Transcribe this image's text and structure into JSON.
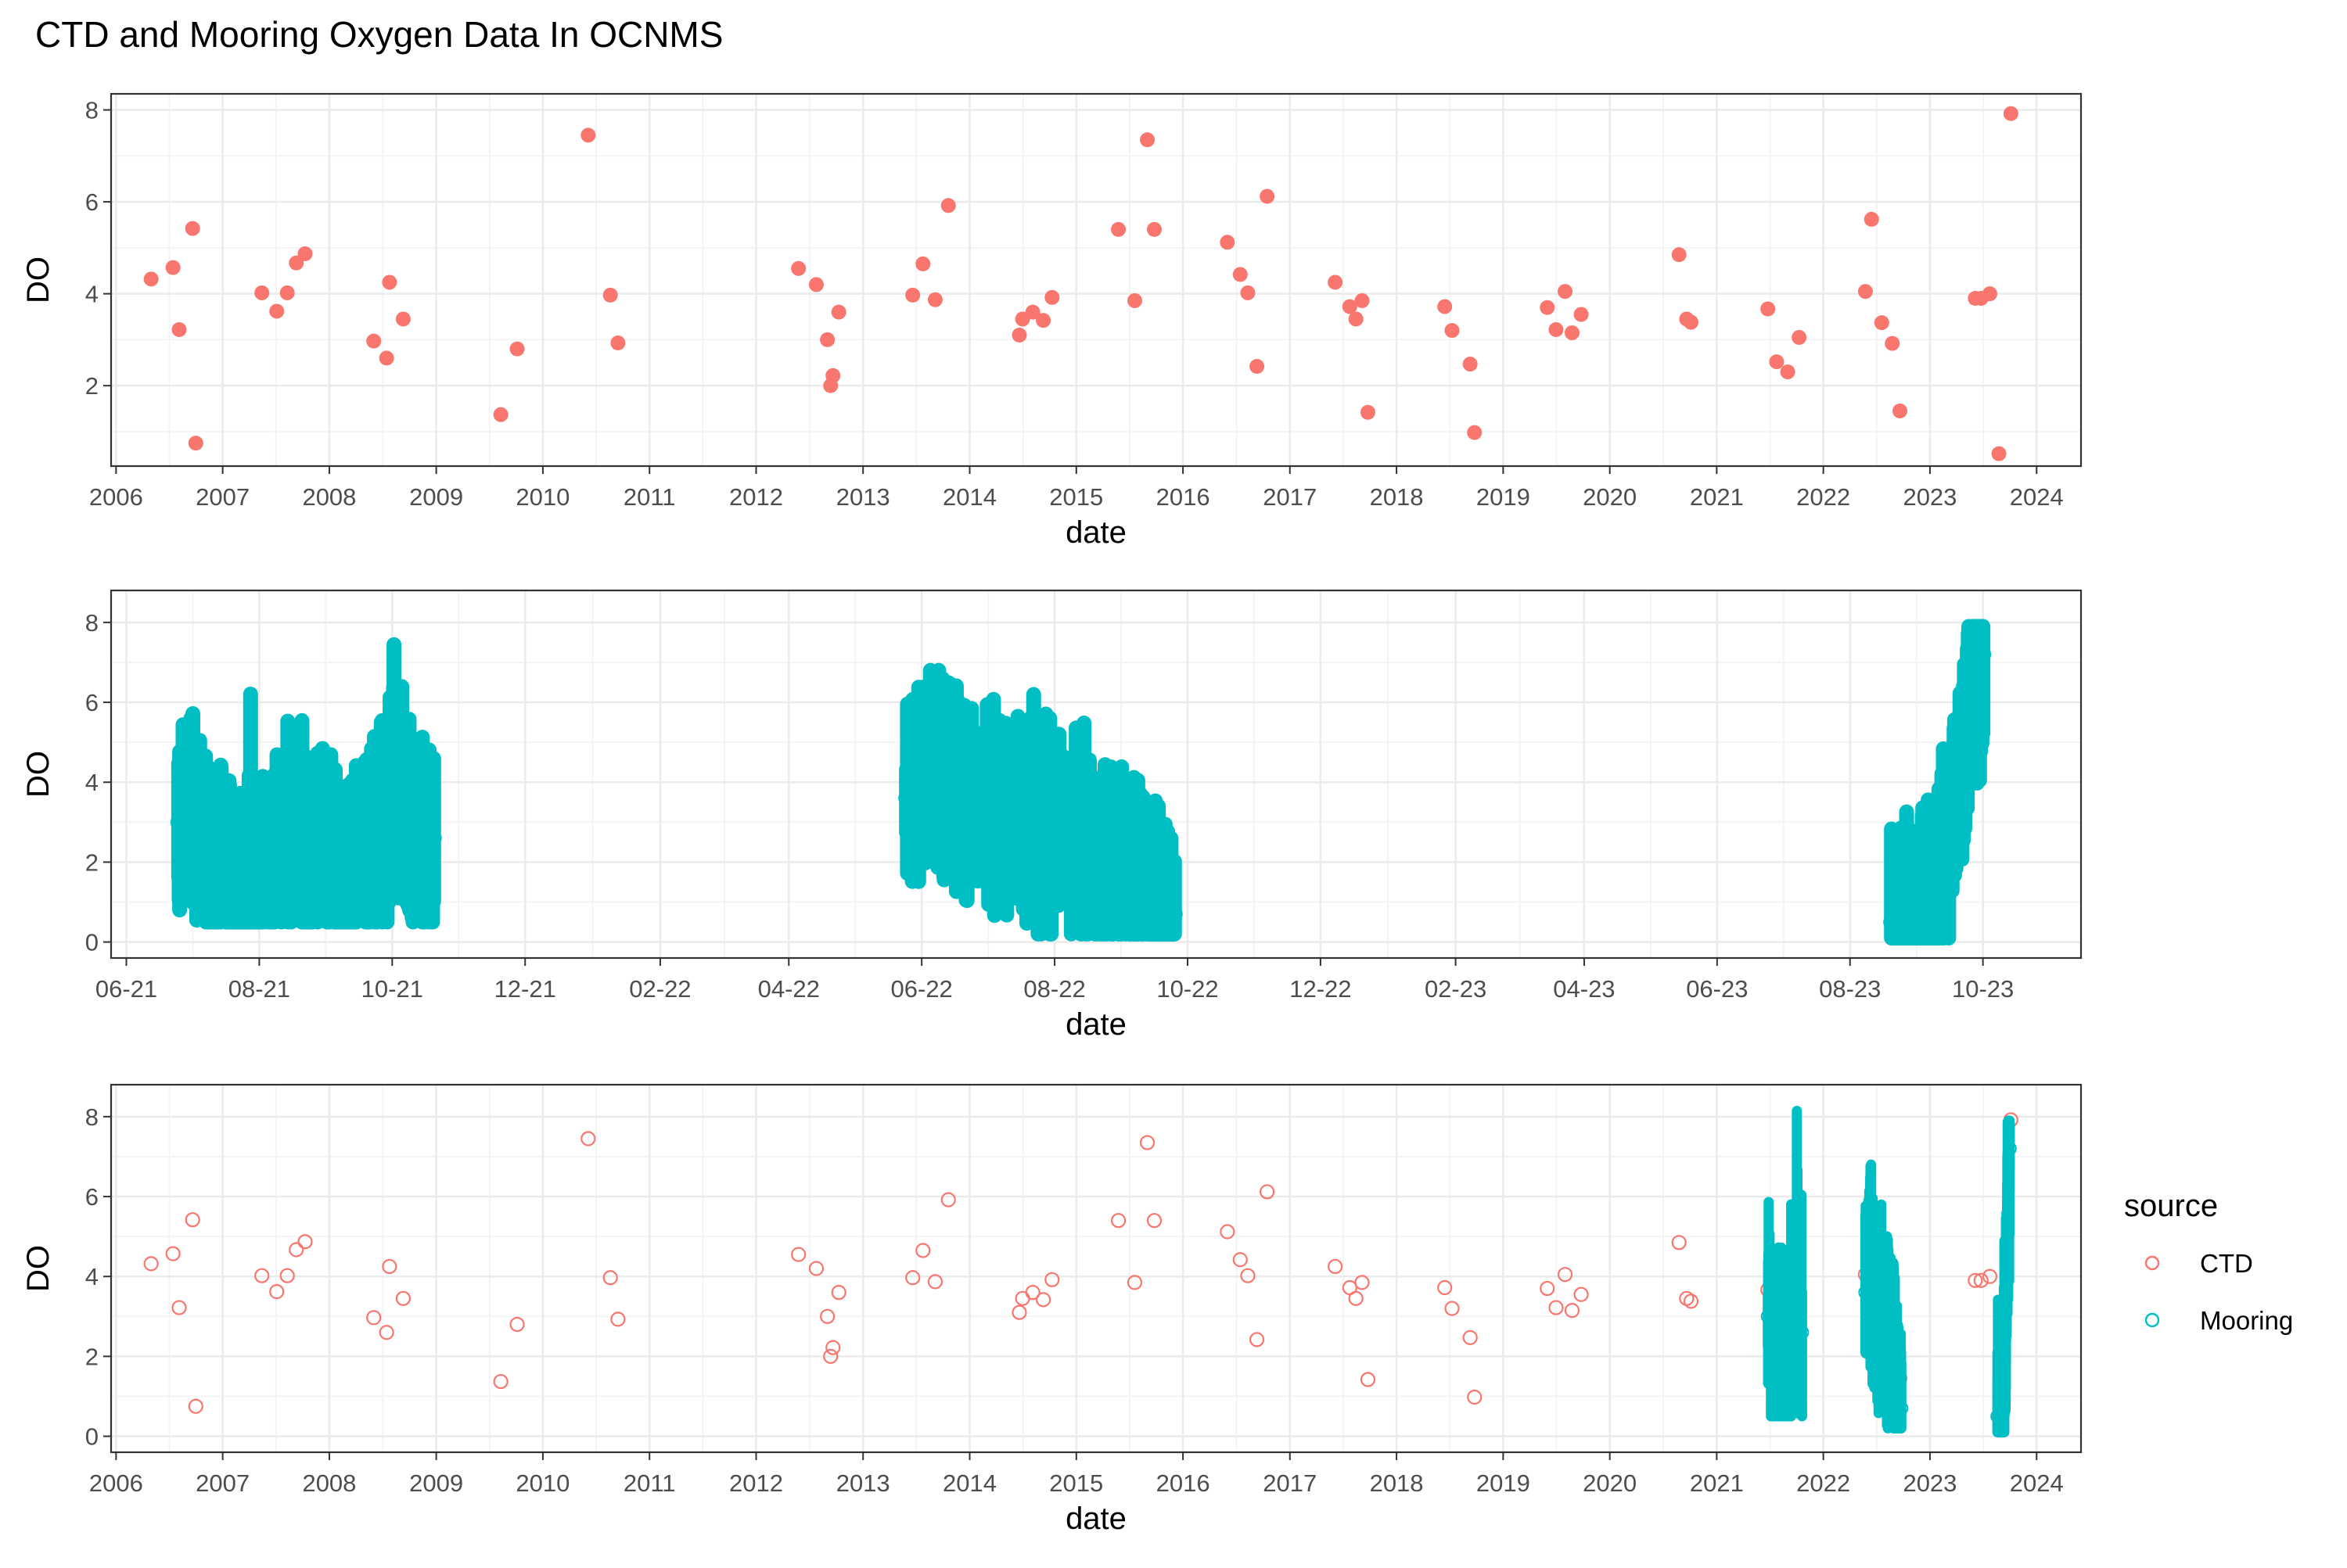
{
  "page": {
    "title": "CTD and Mooring Oxygen Data In OCNMS"
  },
  "colors": {
    "ctd": "#F8766D",
    "mooring": "#00BFC4",
    "grid_major": "#EBEBEB",
    "grid_minor": "#F4F4F4",
    "panel_border": "#333333",
    "text": "#000000",
    "tick_text": "#4D4D4D"
  },
  "legend": {
    "title": "source",
    "items": [
      {
        "label": "CTD",
        "color": "#F8766D"
      },
      {
        "label": "Mooring",
        "color": "#00BFC4"
      }
    ]
  },
  "chart_data": [
    {
      "type": "scatter",
      "xlabel": "date",
      "ylabel": "DO",
      "x_type": "date",
      "xlim": [
        "2005-12-15",
        "2024-06-01"
      ],
      "ylim": [
        0.25,
        8.35
      ],
      "x_ticks": [
        "2006-01-01",
        "2007-01-01",
        "2008-01-01",
        "2009-01-01",
        "2010-01-01",
        "2011-01-01",
        "2012-01-01",
        "2013-01-01",
        "2014-01-01",
        "2015-01-01",
        "2016-01-01",
        "2017-01-01",
        "2018-01-01",
        "2019-01-01",
        "2020-01-01",
        "2021-01-01",
        "2022-01-01",
        "2023-01-01",
        "2024-01-01"
      ],
      "x_tick_labels": [
        "2006",
        "2007",
        "2008",
        "2009",
        "2010",
        "2011",
        "2012",
        "2013",
        "2014",
        "2015",
        "2016",
        "2017",
        "2018",
        "2019",
        "2020",
        "2021",
        "2022",
        "2023",
        "2024"
      ],
      "y_ticks": [
        2,
        4,
        6,
        8
      ],
      "y_tick_labels": [
        "2",
        "4",
        "6",
        "8"
      ],
      "grid": true,
      "legend": false,
      "series": [
        {
          "source": "CTD",
          "marker": "filled",
          "points": [
            [
              "2006-05-01",
              4.32
            ],
            [
              "2006-07-15",
              4.57
            ],
            [
              "2006-08-05",
              3.22
            ],
            [
              "2006-09-20",
              5.42
            ],
            [
              "2006-10-01",
              0.75
            ],
            [
              "2007-05-15",
              4.02
            ],
            [
              "2007-07-05",
              3.62
            ],
            [
              "2007-08-10",
              4.02
            ],
            [
              "2007-09-10",
              4.67
            ],
            [
              "2007-10-10",
              4.87
            ],
            [
              "2008-06-01",
              2.97
            ],
            [
              "2008-07-15",
              2.6
            ],
            [
              "2008-07-25",
              4.25
            ],
            [
              "2008-09-10",
              3.45
            ],
            [
              "2009-08-10",
              1.37
            ],
            [
              "2009-10-05",
              2.8
            ],
            [
              "2010-06-05",
              7.45
            ],
            [
              "2010-08-20",
              3.97
            ],
            [
              "2010-09-15",
              2.93
            ],
            [
              "2012-05-25",
              4.55
            ],
            [
              "2012-07-25",
              4.2
            ],
            [
              "2012-09-01",
              3.0
            ],
            [
              "2012-09-12",
              2.0
            ],
            [
              "2012-09-20",
              2.22
            ],
            [
              "2012-10-10",
              3.6
            ],
            [
              "2013-06-20",
              3.97
            ],
            [
              "2013-07-25",
              4.65
            ],
            [
              "2013-09-05",
              3.87
            ],
            [
              "2013-10-20",
              5.92
            ],
            [
              "2014-06-20",
              3.1
            ],
            [
              "2014-07-01",
              3.45
            ],
            [
              "2014-08-05",
              3.6
            ],
            [
              "2014-09-10",
              3.42
            ],
            [
              "2014-10-10",
              3.92
            ],
            [
              "2015-05-25",
              5.4
            ],
            [
              "2015-07-20",
              3.85
            ],
            [
              "2015-09-01",
              7.35
            ],
            [
              "2015-09-25",
              5.4
            ],
            [
              "2016-06-01",
              5.12
            ],
            [
              "2016-07-15",
              4.42
            ],
            [
              "2016-08-10",
              4.02
            ],
            [
              "2016-09-10",
              2.42
            ],
            [
              "2016-10-15",
              6.12
            ],
            [
              "2017-06-05",
              4.25
            ],
            [
              "2017-07-25",
              3.72
            ],
            [
              "2017-08-15",
              3.45
            ],
            [
              "2017-09-05",
              3.85
            ],
            [
              "2017-09-25",
              1.42
            ],
            [
              "2018-06-15",
              3.72
            ],
            [
              "2018-07-10",
              3.2
            ],
            [
              "2018-09-10",
              2.47
            ],
            [
              "2018-09-25",
              0.98
            ],
            [
              "2019-06-01",
              3.7
            ],
            [
              "2019-07-01",
              3.22
            ],
            [
              "2019-08-01",
              4.05
            ],
            [
              "2019-08-25",
              3.15
            ],
            [
              "2019-09-25",
              3.55
            ],
            [
              "2020-08-25",
              4.85
            ],
            [
              "2020-09-20",
              3.45
            ],
            [
              "2020-10-05",
              3.38
            ],
            [
              "2021-06-25",
              3.67
            ],
            [
              "2021-07-25",
              2.52
            ],
            [
              "2021-09-01",
              2.3
            ],
            [
              "2021-10-10",
              3.05
            ],
            [
              "2022-05-25",
              4.05
            ],
            [
              "2022-06-15",
              5.62
            ],
            [
              "2022-07-20",
              3.37
            ],
            [
              "2022-08-25",
              2.92
            ],
            [
              "2022-09-20",
              1.45
            ],
            [
              "2023-06-05",
              3.9
            ],
            [
              "2023-06-25",
              3.9
            ],
            [
              "2023-07-25",
              4.0
            ],
            [
              "2023-08-25",
              0.52
            ],
            [
              "2023-10-05",
              7.92
            ]
          ]
        }
      ]
    },
    {
      "type": "scatter",
      "xlabel": "date",
      "ylabel": "DO",
      "x_type": "date",
      "xlim": [
        "2021-05-25",
        "2023-11-15"
      ],
      "ylim": [
        -0.4,
        8.8
      ],
      "x_ticks": [
        "2021-06-01",
        "2021-08-01",
        "2021-10-01",
        "2021-12-01",
        "2022-02-01",
        "2022-04-01",
        "2022-06-01",
        "2022-08-01",
        "2022-10-01",
        "2022-12-01",
        "2023-02-01",
        "2023-04-01",
        "2023-06-01",
        "2023-08-01",
        "2023-10-01"
      ],
      "x_tick_labels": [
        "06-21",
        "08-21",
        "10-21",
        "12-21",
        "02-22",
        "04-22",
        "06-22",
        "08-22",
        "10-22",
        "12-22",
        "02-23",
        "04-23",
        "06-23",
        "08-23",
        "10-23"
      ],
      "y_ticks": [
        0,
        2,
        4,
        6,
        8
      ],
      "y_tick_labels": [
        "0",
        "2",
        "4",
        "6",
        "8"
      ],
      "grid": true,
      "legend": false,
      "series": [
        {
          "source": "Mooring",
          "marker": "filled",
          "deployments": [
            {
              "start": "2021-06-25",
              "end": "2021-10-20",
              "profile": [
                [
                  "2021-06-25",
                  3.0
                ],
                [
                  "2021-06-30",
                  3.8
                ],
                [
                  "2021-07-05",
                  2.6
                ],
                [
                  "2021-07-10",
                  2.0
                ],
                [
                  "2021-07-15",
                  2.3
                ],
                [
                  "2021-07-20",
                  1.5
                ],
                [
                  "2021-07-25",
                  1.3
                ],
                [
                  "2021-07-30",
                  2.2
                ],
                [
                  "2021-08-05",
                  2.2
                ],
                [
                  "2021-08-10",
                  2.5
                ],
                [
                  "2021-08-15",
                  3.1
                ],
                [
                  "2021-08-20",
                  2.6
                ],
                [
                  "2021-08-25",
                  2.2
                ],
                [
                  "2021-08-30",
                  3.0
                ],
                [
                  "2021-09-05",
                  2.0
                ],
                [
                  "2021-09-10",
                  1.8
                ],
                [
                  "2021-09-15",
                  2.4
                ],
                [
                  "2021-09-20",
                  2.8
                ],
                [
                  "2021-09-25",
                  2.6
                ],
                [
                  "2021-09-30",
                  3.4
                ],
                [
                  "2021-10-02",
                  5.0
                ],
                [
                  "2021-10-05",
                  2.8
                ],
                [
                  "2021-10-10",
                  2.4
                ],
                [
                  "2021-10-15",
                  3.0
                ],
                [
                  "2021-10-20",
                  2.6
                ]
              ],
              "max": 8.4,
              "min": 0.5
            },
            {
              "start": "2022-05-25",
              "end": "2022-09-25",
              "profile": [
                [
                  "2022-05-25",
                  3.6
                ],
                [
                  "2022-06-01",
                  4.2
                ],
                [
                  "2022-06-08",
                  4.6
                ],
                [
                  "2022-06-15",
                  4.2
                ],
                [
                  "2022-06-22",
                  3.4
                ],
                [
                  "2022-07-01",
                  3.6
                ],
                [
                  "2022-07-08",
                  3.3
                ],
                [
                  "2022-07-15",
                  3.5
                ],
                [
                  "2022-07-22",
                  3.2
                ],
                [
                  "2022-08-01",
                  3.1
                ],
                [
                  "2022-08-08",
                  3.0
                ],
                [
                  "2022-08-15",
                  2.6
                ],
                [
                  "2022-08-22",
                  2.0
                ],
                [
                  "2022-09-01",
                  2.1
                ],
                [
                  "2022-09-08",
                  1.8
                ],
                [
                  "2022-09-15",
                  1.4
                ],
                [
                  "2022-09-20",
                  1.0
                ],
                [
                  "2022-09-25",
                  0.7
                ]
              ],
              "max": 6.8,
              "min": 0.2
            },
            {
              "start": "2023-08-20",
              "end": "2023-10-01",
              "profile": [
                [
                  "2023-08-20",
                  0.5
                ],
                [
                  "2023-08-25",
                  0.6
                ],
                [
                  "2023-08-30",
                  1.0
                ],
                [
                  "2023-09-05",
                  1.4
                ],
                [
                  "2023-09-10",
                  1.8
                ],
                [
                  "2023-09-15",
                  2.4
                ],
                [
                  "2023-09-20",
                  4.0
                ],
                [
                  "2023-09-25",
                  6.2
                ],
                [
                  "2023-10-01",
                  7.2
                ]
              ],
              "max": 7.9,
              "min": 0.1
            }
          ]
        }
      ]
    },
    {
      "type": "scatter",
      "xlabel": "date",
      "ylabel": "DO",
      "x_type": "date",
      "xlim": [
        "2005-12-15",
        "2024-06-01"
      ],
      "ylim": [
        -0.4,
        8.8
      ],
      "x_ticks": [
        "2006-01-01",
        "2007-01-01",
        "2008-01-01",
        "2009-01-01",
        "2010-01-01",
        "2011-01-01",
        "2012-01-01",
        "2013-01-01",
        "2014-01-01",
        "2015-01-01",
        "2016-01-01",
        "2017-01-01",
        "2018-01-01",
        "2019-01-01",
        "2020-01-01",
        "2021-01-01",
        "2022-01-01",
        "2023-01-01",
        "2024-01-01"
      ],
      "x_tick_labels": [
        "2006",
        "2007",
        "2008",
        "2009",
        "2010",
        "2011",
        "2012",
        "2013",
        "2014",
        "2015",
        "2016",
        "2017",
        "2018",
        "2019",
        "2020",
        "2021",
        "2022",
        "2023",
        "2024"
      ],
      "y_ticks": [
        0,
        2,
        4,
        6,
        8
      ],
      "y_tick_labels": [
        "0",
        "2",
        "4",
        "6",
        "8"
      ],
      "grid": true,
      "legend": true,
      "legend_position": "right",
      "series": [
        {
          "source": "CTD",
          "marker": "open",
          "same_as_panel": 0
        },
        {
          "source": "Mooring",
          "marker": "open",
          "same_as_panel": 1
        }
      ]
    }
  ]
}
